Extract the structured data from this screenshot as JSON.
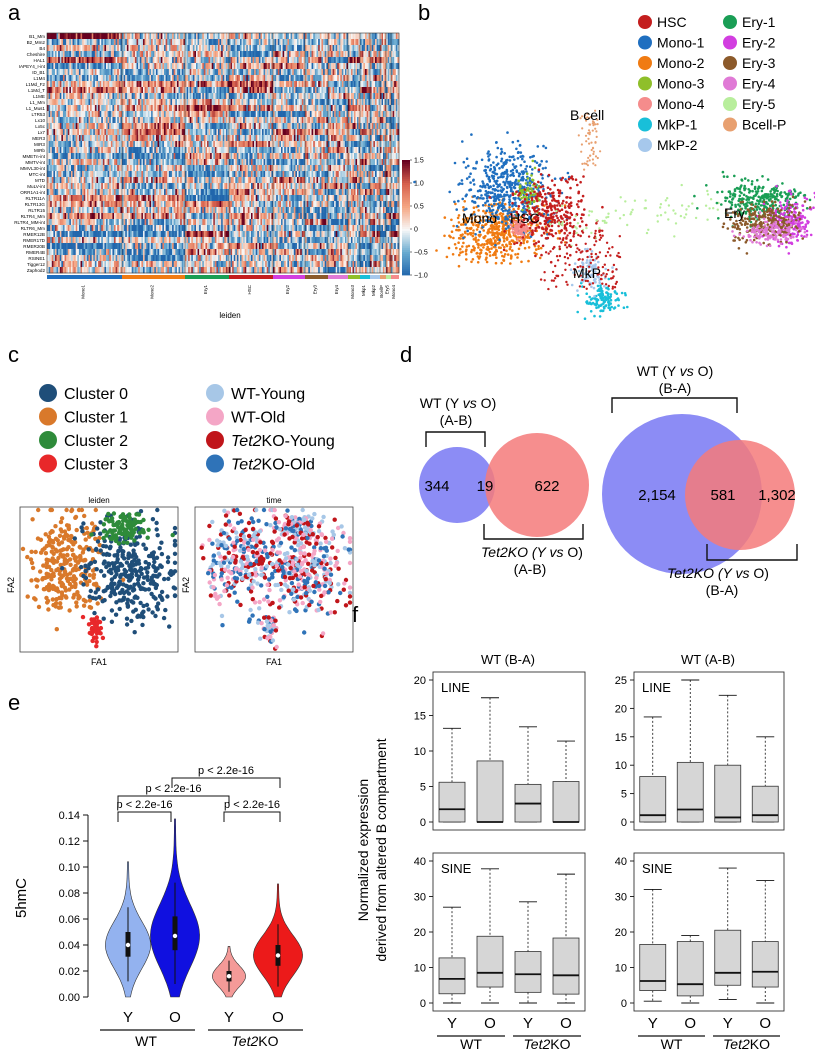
{
  "panels": {
    "a": "a",
    "b": "b",
    "c": "c",
    "d": "d",
    "e": "e",
    "f": "f"
  },
  "colors": {
    "cluster0": "#1f4e79",
    "cluster1": "#d9792b",
    "cluster2": "#2e8b3a",
    "cluster3": "#e8282a",
    "wt_young": "#a7c7e7",
    "wt_old": "#f4a6c6",
    "tet2_young": "#c0151a",
    "tet2_old": "#2f73b8",
    "venn_blue": "#8c8cf5",
    "venn_red": "#f57a7a",
    "violin_wt_y": "#93b2ef",
    "violin_wt_o": "#1010e0",
    "violin_tet_y": "#f49a98",
    "violin_tet_o": "#ec1a1a",
    "box_fill": "#d6d6d6"
  },
  "chart_data": [
    {
      "id": "a",
      "type": "heatmap",
      "row_labels": [
        "B1_Mm",
        "B2_Mm2",
        "B4",
        "Cheshire",
        "HAL1",
        "IAPEY4_I-int",
        "ID_B1",
        "L1M4",
        "L1Md_F2",
        "L1Md_T",
        "L1ME",
        "L1_Mm",
        "L1_Mus1",
        "LTR53",
        "Lx10",
        "Lx5c",
        "Lx7",
        "MER3",
        "MIR3",
        "MIRb",
        "MMETn-int",
        "MMTV-int",
        "MMVL30-int",
        "MTC-int",
        "MTD",
        "MuLV-int",
        "ORR1A1-int",
        "RLTR11A",
        "RLTR13G",
        "RLTR15",
        "RLTR4_Mm",
        "RLTR4_MM-int",
        "RLTR6_Mm",
        "RMER12B",
        "RMER17D",
        "RMER20B",
        "RMER4B",
        "RSINE1",
        "Tigger12",
        "Zaphod2"
      ],
      "column_groups": [
        "Mono1",
        "Mono2",
        "Ery1",
        "HSC",
        "Ery2",
        "Ery3",
        "Ery4",
        "Mono3",
        "Mkp1",
        "Mkp2",
        "BcellP",
        "Ery5",
        "Mono4"
      ],
      "xlabel": "leiden",
      "colorbar": {
        "min": -1.0,
        "max": 1.5,
        "ticks": [
          "1.5",
          "1.0",
          "0.5",
          "0",
          "−0.5",
          "−1.0"
        ]
      }
    },
    {
      "id": "b",
      "type": "scatter",
      "legend_col1": [
        "HSC",
        "Mono-1",
        "Mono-2",
        "Mono-3",
        "Mono-4",
        "MkP-1",
        "MkP-2"
      ],
      "legend_col2": [
        "Ery-1",
        "Ery-2",
        "Ery-3",
        "Ery-4",
        "Ery-5",
        "Bcell-P"
      ],
      "legend_colors1": [
        "#c41e1e",
        "#1f6fc0",
        "#f07b12",
        "#8fbf2a",
        "#f58c8c",
        "#18bfd9",
        "#a6c8ec"
      ],
      "legend_colors2": [
        "#1a9e55",
        "#d23ee0",
        "#8c5a2b",
        "#e07ad6",
        "#b8ee9c",
        "#e8a070"
      ],
      "annotations": [
        "B cell",
        "Mono",
        "HSC",
        "Ery",
        "MkP"
      ]
    },
    {
      "id": "c",
      "type": "scatter",
      "legend_left": [
        "Cluster 0",
        "Cluster 1",
        "Cluster 2",
        "Cluster 3"
      ],
      "legend_right": [
        "WT-Young",
        "WT-Old",
        "KO-Young",
        "KO-Old"
      ],
      "italic_prefix": "Tet2",
      "plot_titles": [
        "leiden",
        "time"
      ],
      "xlabel": "FA1",
      "ylabel": "FA2"
    },
    {
      "id": "d",
      "type": "venn",
      "left": {
        "wt_only": "344",
        "overlap": "19",
        "tet2_only": "622",
        "wt_label1": "WT (Y vs O)",
        "wt_label2": "(A-B)",
        "ko_label1": "Tet2KO (Y vs O)",
        "ko_label2": "(A-B)"
      },
      "right": {
        "wt_only": "2,154",
        "overlap": "581",
        "tet2_only": "1,302",
        "wt_label1": "WT (Y vs O)",
        "wt_label2": "(B-A)",
        "ko_label1": "Tet2KO (Y vs O)",
        "ko_label2": "(B-A)"
      },
      "labels": {
        "wt_pre": "WT (Y ",
        "vs": "vs",
        "o_close": " O)",
        "ab": "(A-B)",
        "ba": "(B-A)",
        "tet2": "Tet2",
        "ko_y": "KO (Y ",
        "ko_pre": "KO (Y "
      }
    },
    {
      "id": "e",
      "type": "violin",
      "ylabel": "5hmC",
      "y_ticks": [
        "0.00",
        "0.02",
        "0.04",
        "0.06",
        "0.08",
        "0.10",
        "0.12",
        "0.14"
      ],
      "ylim": [
        0,
        0.14
      ],
      "groups": [
        {
          "name": "Y",
          "group": "WT",
          "median": 0.04,
          "q1": 0.031,
          "q3": 0.05,
          "min": 0.0,
          "max": 0.104
        },
        {
          "name": "O",
          "group": "WT",
          "median": 0.047,
          "q1": 0.036,
          "q3": 0.062,
          "min": 0.0,
          "max": 0.137
        },
        {
          "name": "Y",
          "group": "Tet2KO",
          "median": 0.016,
          "q1": 0.012,
          "q3": 0.02,
          "min": 0.0,
          "max": 0.039
        },
        {
          "name": "O",
          "group": "Tet2KO",
          "median": 0.032,
          "q1": 0.024,
          "q3": 0.04,
          "min": 0.0,
          "max": 0.087
        }
      ],
      "pvalues": [
        "p < 2.2e-16",
        "p < 2.2e-16",
        "p < 2.2e-16",
        "p < 2.2e-16"
      ],
      "x_groups": [
        "WT",
        "KO"
      ]
    },
    {
      "id": "f",
      "type": "box",
      "ylabel_line1": "Normalized expression",
      "ylabel_line2": "derived from altered B compartment",
      "col_titles": [
        "WT (B-A)",
        "WT (A-B)"
      ],
      "row_titles": [
        "LINE",
        "SINE"
      ],
      "x_labels": [
        "Y",
        "O",
        "Y",
        "O"
      ],
      "x_groups": [
        "WT",
        "KO"
      ],
      "plots": [
        {
          "row": "LINE",
          "col": "WT (B-A)",
          "ylim": [
            0,
            20
          ],
          "ticks": [
            "0",
            "5",
            "10",
            "15",
            "20"
          ],
          "boxes": [
            {
              "min": 0,
              "q1": 0,
              "median": 1.8,
              "q3": 5.6,
              "max": 13.2
            },
            {
              "min": 0,
              "q1": 0,
              "median": 0,
              "q3": 8.6,
              "max": 17.5
            },
            {
              "min": 0,
              "q1": 0,
              "median": 2.6,
              "q3": 5.3,
              "max": 13.4
            },
            {
              "min": 0,
              "q1": 0,
              "median": 0,
              "q3": 5.7,
              "max": 11.4
            }
          ]
        },
        {
          "row": "LINE",
          "col": "WT (A-B)",
          "ylim": [
            0,
            25
          ],
          "ticks": [
            "0",
            "5",
            "10",
            "15",
            "20",
            "25"
          ],
          "boxes": [
            {
              "min": 0,
              "q1": 0,
              "median": 1.2,
              "q3": 8.0,
              "max": 18.5
            },
            {
              "min": 0,
              "q1": 0,
              "median": 2.2,
              "q3": 10.5,
              "max": 25.0
            },
            {
              "min": 0,
              "q1": 0,
              "median": 0.8,
              "q3": 10.0,
              "max": 22.3
            },
            {
              "min": 0,
              "q1": 0,
              "median": 1.2,
              "q3": 6.3,
              "max": 15.0
            }
          ]
        },
        {
          "row": "SINE",
          "col": "WT (B-A)",
          "ylim": [
            0,
            40
          ],
          "ticks": [
            "0",
            "10",
            "20",
            "30",
            "40"
          ],
          "boxes": [
            {
              "min": 0,
              "q1": 2.6,
              "median": 6.8,
              "q3": 12.7,
              "max": 27.0
            },
            {
              "min": 0,
              "q1": 4.5,
              "median": 8.5,
              "q3": 18.8,
              "max": 37.8
            },
            {
              "min": 0,
              "q1": 3.0,
              "median": 8.1,
              "q3": 14.5,
              "max": 28.5
            },
            {
              "min": 0,
              "q1": 2.5,
              "median": 7.8,
              "q3": 18.3,
              "max": 36.3
            }
          ]
        },
        {
          "row": "SINE",
          "col": "WT (A-B)",
          "ylim": [
            0,
            40
          ],
          "ticks": [
            "0",
            "10",
            "20",
            "30",
            "40"
          ],
          "boxes": [
            {
              "min": 0.5,
              "q1": 3.5,
              "median": 6.2,
              "q3": 16.5,
              "max": 32.0
            },
            {
              "min": 0,
              "q1": 2.0,
              "median": 5.3,
              "q3": 17.3,
              "max": 19.0
            },
            {
              "min": 1.0,
              "q1": 5.0,
              "median": 8.5,
              "q3": 20.5,
              "max": 38.0
            },
            {
              "min": 0,
              "q1": 4.5,
              "median": 8.8,
              "q3": 17.3,
              "max": 34.5
            }
          ]
        }
      ]
    }
  ]
}
